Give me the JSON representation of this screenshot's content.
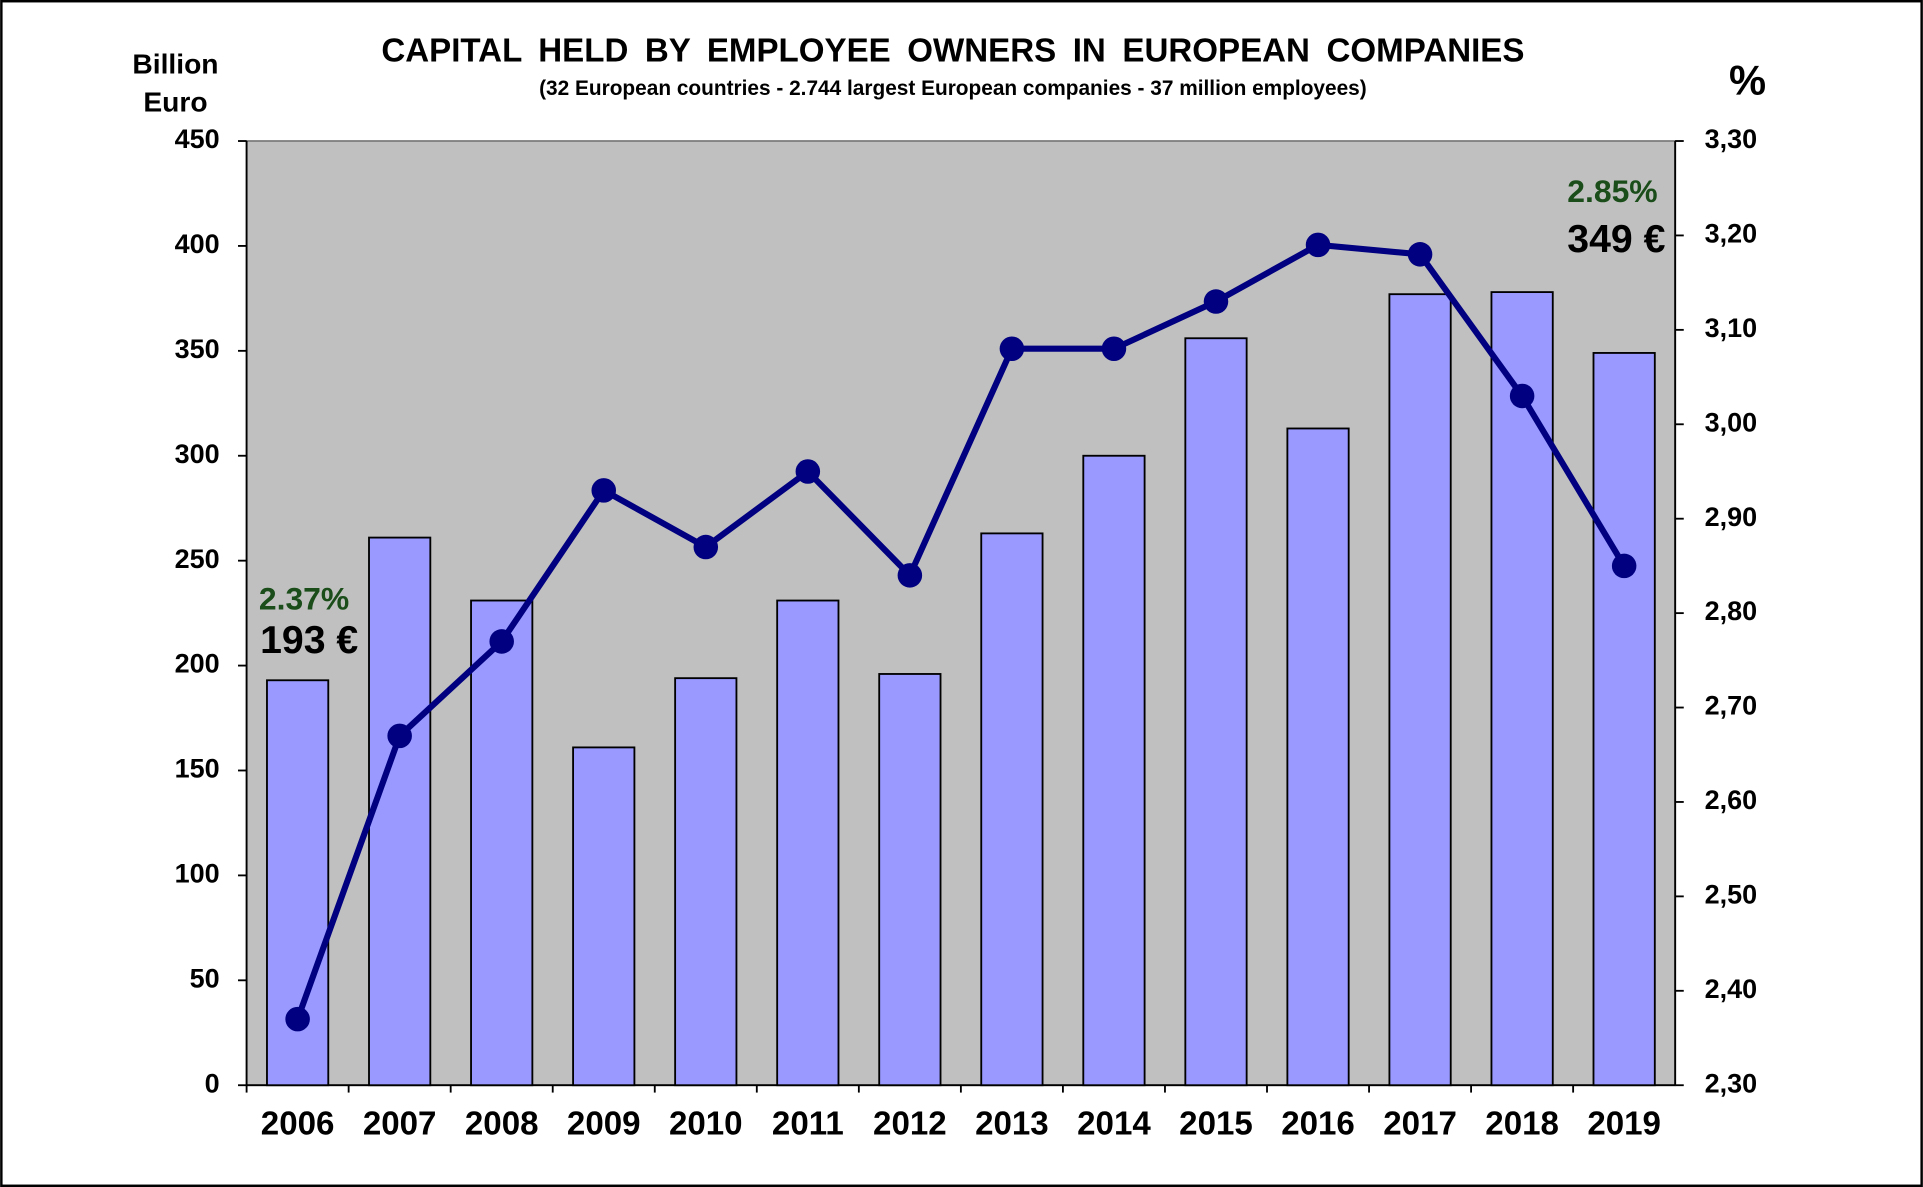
{
  "chart_data": {
    "type": "bar-line",
    "title": "CAPITAL HELD BY EMPLOYEE OWNERS IN EUROPEAN COMPANIES",
    "subtitle": "(32 European countries - 2.744 largest European companies - 37 million employees)",
    "y_label": [
      "Billion",
      "Euro"
    ],
    "y2_label": "%",
    "categories": [
      "2006",
      "2007",
      "2008",
      "2009",
      "2010",
      "2011",
      "2012",
      "2013",
      "2014",
      "2015",
      "2016",
      "2017",
      "2018",
      "2019"
    ],
    "series": [
      {
        "type": "bar",
        "color": "#9999ff",
        "values": [
          193,
          261,
          231,
          161,
          194,
          231,
          196,
          263,
          300,
          356,
          313,
          377,
          378,
          349
        ]
      },
      {
        "type": "line",
        "axis": "y2",
        "color": "#000080",
        "values": [
          2.37,
          2.67,
          2.77,
          2.93,
          2.87,
          2.95,
          2.84,
          3.08,
          3.08,
          3.13,
          3.19,
          3.18,
          3.03,
          2.85
        ]
      }
    ],
    "ylim": [
      0,
      450
    ],
    "yticks": [
      0,
      50,
      100,
      150,
      200,
      250,
      300,
      350,
      400,
      450
    ],
    "y2lim": [
      2.3,
      3.3
    ],
    "y2ticks": [
      {
        "value": 2.3,
        "label": "2,30"
      },
      {
        "value": 2.4,
        "label": "2,40"
      },
      {
        "value": 2.5,
        "label": "2,50"
      },
      {
        "value": 2.6,
        "label": "2,60"
      },
      {
        "value": 2.7,
        "label": "2,70"
      },
      {
        "value": 2.8,
        "label": "2,80"
      },
      {
        "value": 2.9,
        "label": "2,90"
      },
      {
        "value": 3.0,
        "label": "3,00"
      },
      {
        "value": 3.1,
        "label": "3,10"
      },
      {
        "value": 3.2,
        "label": "3,20"
      },
      {
        "value": 3.3,
        "label": "3,30"
      }
    ],
    "annotations": [
      {
        "text": "2.37%",
        "color": "#1a4d1a"
      },
      {
        "text": "193 €",
        "color": "#000000"
      },
      {
        "text": "2.85%",
        "color": "#1a4d1a"
      },
      {
        "text": "349 €",
        "color": "#000000"
      }
    ],
    "plot_background": "#c0c0c0"
  }
}
